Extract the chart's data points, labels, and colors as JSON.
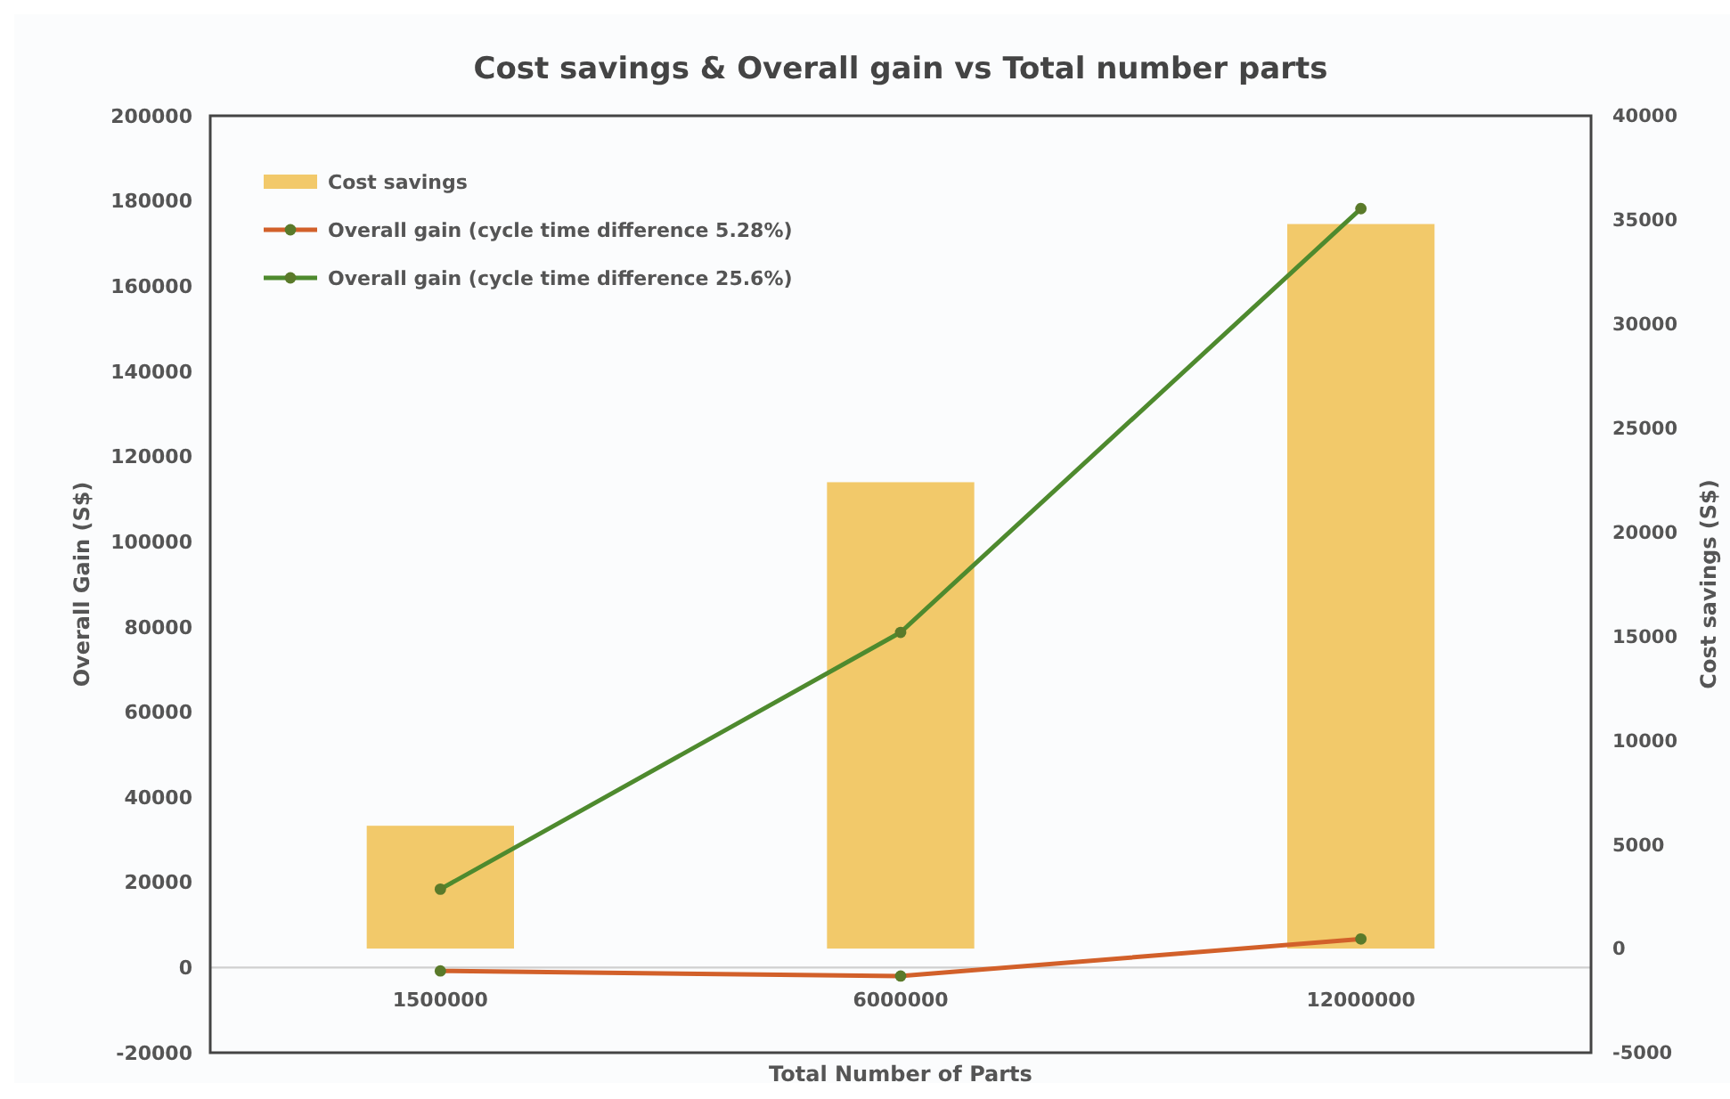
{
  "chart_data": {
    "type": "bar",
    "title": "Cost savings & Overall gain vs Total number parts",
    "xlabel": "Total Number of Parts",
    "ylabel": "Overall Gain (S$)",
    "y2label": "Cost savings (S$)",
    "categories": [
      "1500000",
      "6000000",
      "12000000"
    ],
    "series": [
      {
        "name": "Cost savings",
        "axis": "y2",
        "color": "#f2c96a",
        "values": [
          5900,
          22400,
          34800
        ]
      },
      {
        "name": "Overall gain (cycle time difference 5.28%)",
        "type": "line",
        "color": "#d2602a",
        "values": [
          -800,
          -2000,
          6700
        ]
      },
      {
        "name": "Overall gain (cycle time difference 25.6%)",
        "type": "line",
        "color": "#4e8a2e",
        "values": [
          18400,
          78700,
          178200
        ]
      }
    ],
    "ylim": [
      -20000,
      200000
    ],
    "yticks": [
      -20000,
      0,
      20000,
      40000,
      60000,
      80000,
      100000,
      120000,
      140000,
      160000,
      180000,
      200000
    ],
    "y2lim": [
      -5000,
      40000
    ],
    "y2ticks": [
      -5000,
      0,
      5000,
      10000,
      15000,
      20000,
      25000,
      30000,
      35000,
      40000
    ],
    "marker": "circle",
    "line_style": "solid",
    "grid": false,
    "legend": "top left"
  }
}
